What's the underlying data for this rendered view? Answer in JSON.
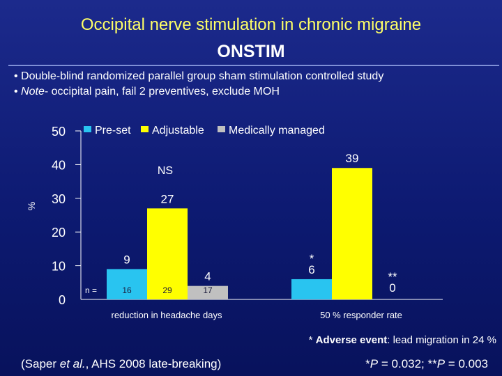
{
  "slide": {
    "title": "Occipital nerve stimulation in chronic migraine",
    "subtitle": "ONSTIM",
    "bullets": [
      {
        "prefix": "• ",
        "italic": "",
        "text": "Double-blind randomized parallel group sham stimulation controlled study"
      },
      {
        "prefix": "• ",
        "italic": "Note",
        "text": "- occipital pain, fail 2 preventives, exclude MOH"
      }
    ],
    "footnote": {
      "lead": "* ",
      "bold": "Adverse event",
      "rest": ": lead migration in 24 %"
    },
    "citation": {
      "pre": "(Saper ",
      "italic": "et al.",
      "post": ", AHS 2008 late-breaking)"
    },
    "pvalues": {
      "a_pre": "*",
      "a_italic": "P",
      "a_post": " = 0.032; **",
      "b_italic": "P",
      "b_post": " = 0.003"
    }
  },
  "chart_data": {
    "type": "bar",
    "ylabel": "%",
    "ylim": [
      0,
      50
    ],
    "yticks": [
      "0",
      "10",
      "20",
      "30",
      "40",
      "50"
    ],
    "legend_position": "top",
    "categories": [
      "reduction in headache days",
      "50 % responder rate"
    ],
    "series": [
      {
        "name": "Pre-set",
        "color": "#29c4f0",
        "values": [
          9,
          6
        ]
      },
      {
        "name": "Adjustable",
        "color": "#ffff00",
        "values": [
          27,
          39
        ]
      },
      {
        "name": "Medically managed",
        "color": "#c0c0c0",
        "values": [
          4,
          0
        ]
      }
    ],
    "value_labels": [
      [
        "9",
        "27",
        "4"
      ],
      [
        "6",
        "39",
        "0"
      ]
    ],
    "significance": [
      [
        "",
        "",
        ""
      ],
      [
        "*",
        "",
        "**"
      ]
    ],
    "annotations": {
      "ns": "NS"
    },
    "n_row": {
      "label": "n =",
      "values": [
        "16",
        "29",
        "17"
      ]
    }
  }
}
